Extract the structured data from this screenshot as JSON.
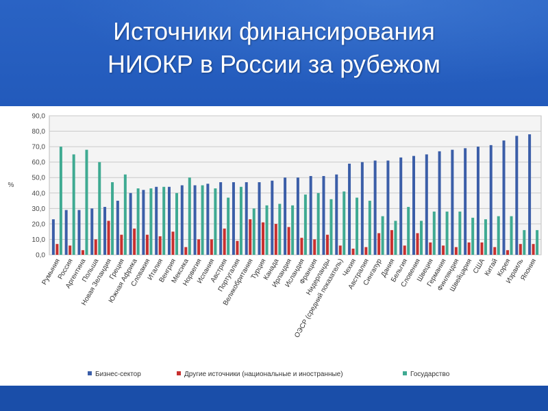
{
  "title_line1": "Источники финансирования",
  "title_line2": "НИОКР в России за рубежом",
  "chart_data": {
    "type": "bar",
    "title": "",
    "xlabel": "",
    "ylabel": "%",
    "ylim": [
      0,
      90
    ],
    "yticks": [
      "0,0",
      "10,0",
      "20,0",
      "30,0",
      "40,0",
      "50,0",
      "60,0",
      "70,0",
      "80,0",
      "90,0"
    ],
    "grid": true,
    "legend_placement": "bottom",
    "categories": [
      "Румыния",
      "Россия",
      "Аргентина",
      "Польша",
      "Новая Зеландия",
      "Греция",
      "Южная Африка",
      "Словакия",
      "Италия",
      "Венгрия",
      "Мексика",
      "Норвегия",
      "Испания",
      "Австрия",
      "Португалия",
      "Великобритания",
      "Турция",
      "Канада",
      "Ирландия",
      "Исландия",
      "Франция",
      "Нидерланды",
      "ОЭСР (средний показатель)",
      "Чехия",
      "Австралия",
      "Сингапур",
      "Дания",
      "Бельгия",
      "Словения",
      "Швеция",
      "Германия",
      "Финляндия",
      "Швейцария",
      "США",
      "Китай",
      "Корея",
      "Израиль",
      "Япония"
    ],
    "series": [
      {
        "name": "Бизнес-сектор",
        "color": "#3b5ea8",
        "values": [
          23,
          29,
          29,
          30,
          31,
          35,
          40,
          42,
          44,
          44,
          45,
          45,
          46,
          47,
          47,
          47,
          47,
          48,
          50,
          50,
          51,
          51,
          52,
          59,
          60,
          61,
          61,
          63,
          64,
          65,
          67,
          68,
          69,
          70,
          71,
          74,
          77,
          78
        ]
      },
      {
        "name": "Другие источники (национальные и иностранные)",
        "color": "#c8302f",
        "values": [
          7,
          6,
          3,
          10,
          22,
          13,
          17,
          13,
          12,
          15,
          5,
          10,
          10,
          17,
          9,
          23,
          21,
          20,
          18,
          11,
          10,
          13,
          6,
          4,
          5,
          14,
          16,
          6,
          14,
          8,
          6,
          5,
          8,
          8,
          5,
          3,
          7,
          7
        ]
      },
      {
        "name": "Государство",
        "color": "#3faa92",
        "values": [
          70,
          65,
          68,
          60,
          47,
          52,
          43,
          43,
          44,
          40,
          50,
          45,
          43,
          37,
          44,
          30,
          32,
          33,
          32,
          39,
          40,
          36,
          41,
          37,
          35,
          25,
          22,
          31,
          22,
          28,
          28,
          28,
          24,
          23,
          25,
          25,
          16,
          16
        ]
      }
    ]
  }
}
